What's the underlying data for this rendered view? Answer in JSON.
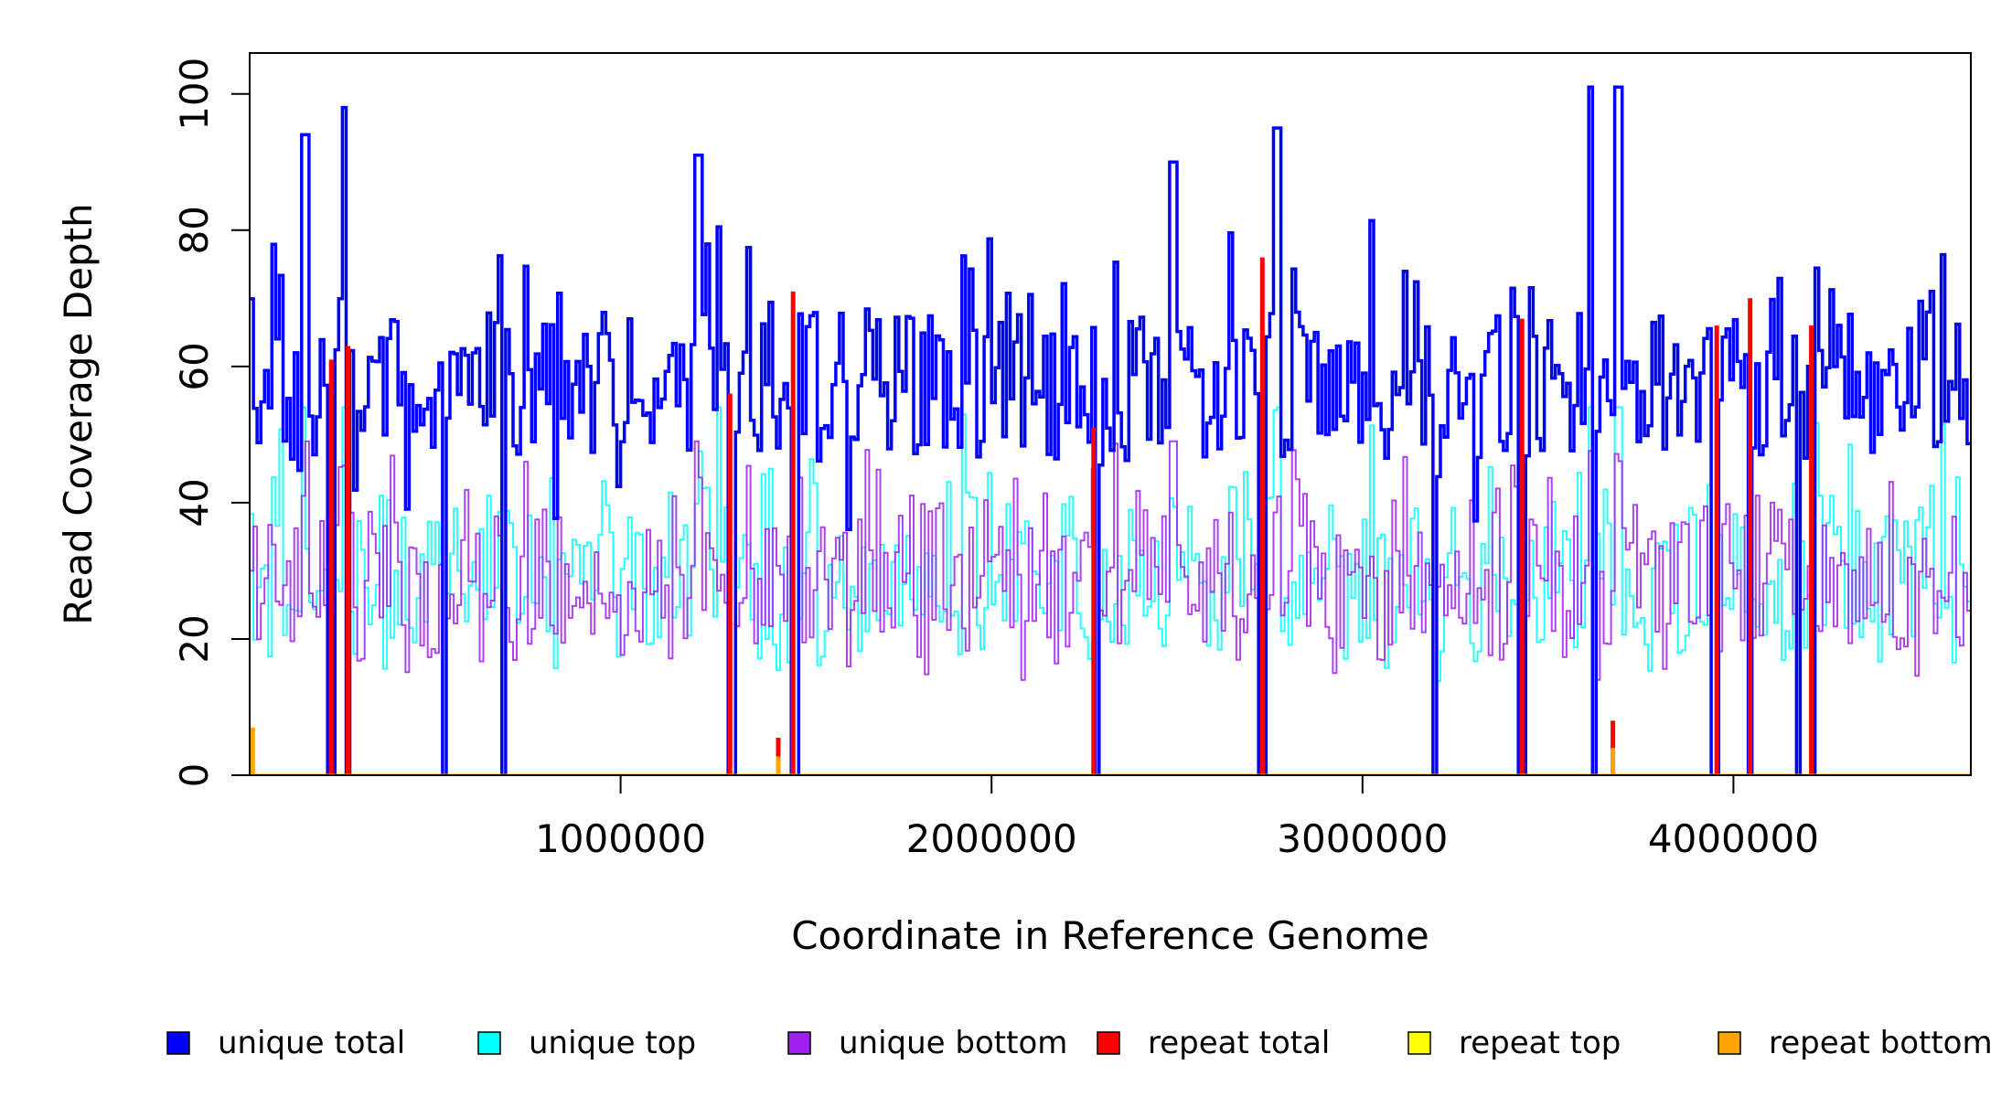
{
  "chart_data": {
    "type": "line",
    "title": "",
    "xlabel": "Coordinate in Reference Genome",
    "ylabel": "Read Coverage Depth",
    "xlim": [
      0,
      4640000
    ],
    "ylim": [
      0,
      106
    ],
    "x_ticks": [
      {
        "value": 1000000,
        "label": "1000000"
      },
      {
        "value": 2000000,
        "label": "2000000"
      },
      {
        "value": 3000000,
        "label": "3000000"
      },
      {
        "value": 4000000,
        "label": "4000000"
      }
    ],
    "y_ticks": [
      {
        "value": 0,
        "label": "0"
      },
      {
        "value": 20,
        "label": "20"
      },
      {
        "value": 40,
        "label": "40"
      },
      {
        "value": 60,
        "label": "60"
      },
      {
        "value": 80,
        "label": "80"
      },
      {
        "value": 100,
        "label": "100"
      }
    ],
    "bin_width": 10000,
    "legend_position": "bottom",
    "series": [
      {
        "name": "unique total",
        "color": "#0000ff"
      },
      {
        "name": "unique top",
        "color": "#00ffff"
      },
      {
        "name": "unique bottom",
        "color": "#a020f0"
      },
      {
        "name": "repeat total",
        "color": "#ff0000"
      },
      {
        "name": "repeat top",
        "color": "#ffff00"
      },
      {
        "name": "repeat bottom",
        "color": "#ffa500"
      }
    ],
    "zero_coverage_dips": [
      220000,
      265000,
      525000,
      685000,
      1300000,
      1470000,
      2285000,
      2730000,
      3195000,
      3430000,
      3625000,
      3950000,
      4045000,
      4175000,
      4215000
    ],
    "peaks": [
      {
        "x": 150000,
        "value": 94
      },
      {
        "x": 260000,
        "value": 98
      },
      {
        "x": 1210000,
        "value": 91
      },
      {
        "x": 2490000,
        "value": 90
      },
      {
        "x": 2770000,
        "value": 95
      },
      {
        "x": 3615000,
        "value": 101
      },
      {
        "x": 3690000,
        "value": 101
      }
    ],
    "repeat_total_peaks": [
      {
        "x": 220000,
        "value": 61
      },
      {
        "x": 265000,
        "value": 63
      },
      {
        "x": 1295000,
        "value": 56
      },
      {
        "x": 1465000,
        "value": 71
      },
      {
        "x": 2275000,
        "value": 51
      },
      {
        "x": 2730000,
        "value": 76
      },
      {
        "x": 3430000,
        "value": 67
      },
      {
        "x": 3955000,
        "value": 66
      },
      {
        "x": 4045000,
        "value": 70
      },
      {
        "x": 4210000,
        "value": 66
      },
      {
        "x": 1425000,
        "value": 5.5
      },
      {
        "x": 3675000,
        "value": 8
      }
    ]
  }
}
